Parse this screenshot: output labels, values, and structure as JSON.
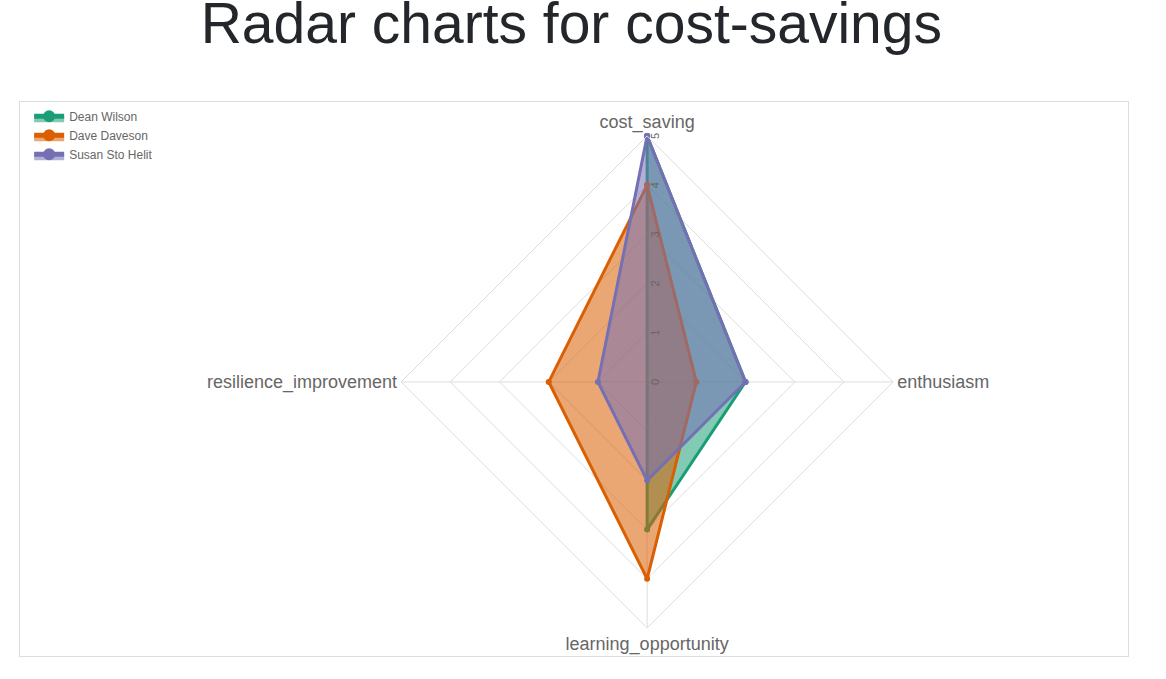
{
  "chart_data": {
    "type": "radar",
    "title": "Radar charts for cost-savings",
    "categories": [
      "cost_saving",
      "enthusiasm",
      "learning_opportunity",
      "resilience_improvement"
    ],
    "series": [
      {
        "name": "Dean Wilson",
        "color": "#1b9e77",
        "values": [
          5,
          2,
          3,
          0
        ]
      },
      {
        "name": "Dave Daveson",
        "color": "#d95f02",
        "values": [
          4,
          1,
          4,
          2
        ]
      },
      {
        "name": "Susan Sto Helit",
        "color": "#7570b3",
        "values": [
          5,
          2,
          2,
          1
        ]
      }
    ],
    "ylim": [
      0,
      5
    ],
    "yticks": [
      0,
      1,
      2,
      3,
      4,
      5
    ],
    "grid": true,
    "legend": "top-left"
  }
}
